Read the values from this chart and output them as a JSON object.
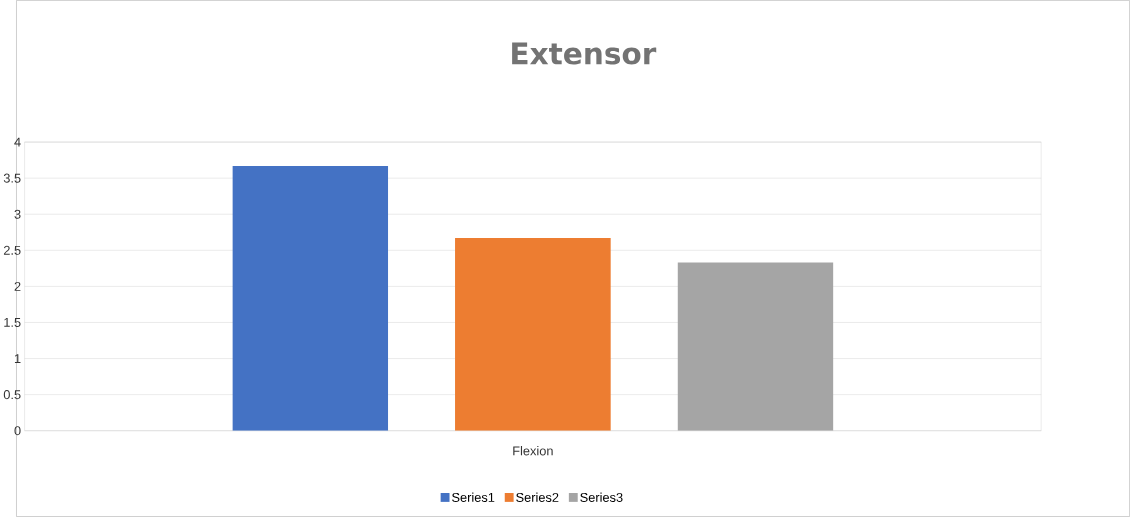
{
  "chart_data": {
    "type": "bar",
    "title": "Extensor",
    "categories": [
      "Flexion"
    ],
    "series": [
      {
        "name": "Series1",
        "color": "#4472c4",
        "values": [
          3.67
        ]
      },
      {
        "name": "Series2",
        "color": "#ed7d31",
        "values": [
          2.67
        ]
      },
      {
        "name": "Series3",
        "color": "#a5a5a5",
        "values": [
          2.33
        ]
      }
    ],
    "ylim": [
      0,
      4
    ],
    "yticks": [
      0,
      0.5,
      1,
      1.5,
      2,
      2.5,
      3,
      3.5,
      4
    ],
    "grid": "y",
    "legend": "bottom"
  }
}
